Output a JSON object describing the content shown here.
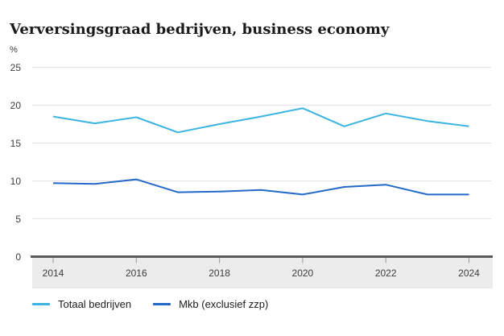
{
  "title": "Verversingsgraad bedrijven, business economy",
  "y_axis_unit": "%",
  "chart_data": {
    "type": "line",
    "title": "Verversingsgraad bedrijven, business economy",
    "ylabel": "%",
    "xlabel": "",
    "x": [
      2014,
      2015,
      2016,
      2017,
      2018,
      2019,
      2020,
      2021,
      2022,
      2023,
      2024
    ],
    "x_tick_labels": [
      "2014",
      "2016",
      "2018",
      "2020",
      "2022",
      "2024"
    ],
    "y_ticks": [
      0,
      5,
      10,
      15,
      20,
      25
    ],
    "ylim": [
      0,
      25
    ],
    "grid": true,
    "legend_position": "bottom",
    "series": [
      {
        "name": "Totaal bedrijven",
        "color": "#3cb4e1",
        "values": [
          18.5,
          17.6,
          18.4,
          16.4,
          17.5,
          18.5,
          19.6,
          17.2,
          18.9,
          17.9,
          17.2
        ]
      },
      {
        "name": "Mkb (exclusief zzp)",
        "color": "#2369c8",
        "values": [
          9.7,
          9.6,
          10.2,
          8.5,
          8.6,
          8.8,
          8.2,
          9.2,
          9.5,
          8.2,
          8.2
        ]
      }
    ],
    "style": {
      "grid_color": "#e3e3e3",
      "axis_color": "#5a5a5a",
      "axis_band_color": "#ececec",
      "tick_color": "#9a9a9a",
      "label_color": "#3c3c3c",
      "title_color": "#1a1a1a"
    }
  }
}
